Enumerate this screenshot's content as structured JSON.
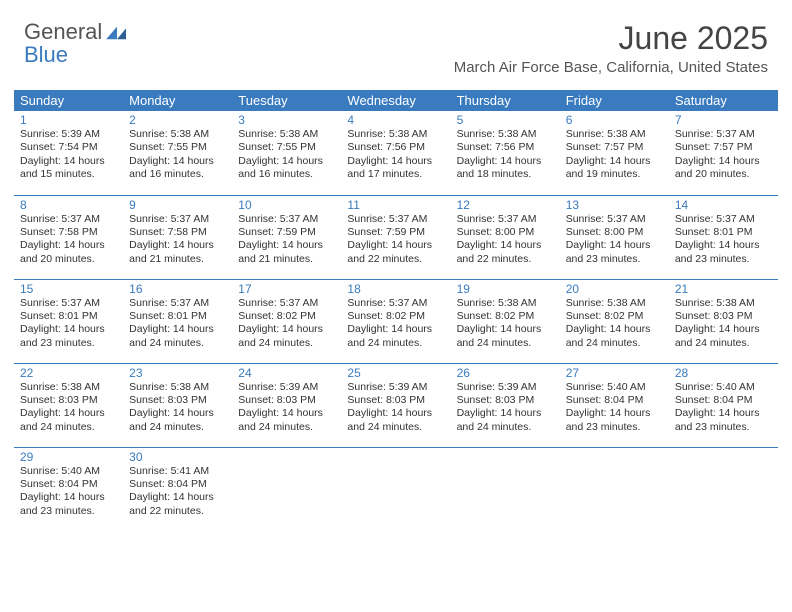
{
  "brand": {
    "word1": "General",
    "word2": "Blue"
  },
  "colors": {
    "accent": "#3a7bbf",
    "header_text": "#ffffff",
    "body_text": "#333333",
    "title_text": "#444444",
    "sub_text": "#555555",
    "background": "#ffffff"
  },
  "title": "June 2025",
  "location": "March Air Force Base, California, United States",
  "weekday_headers": [
    "Sunday",
    "Monday",
    "Tuesday",
    "Wednesday",
    "Thursday",
    "Friday",
    "Saturday"
  ],
  "weeks": [
    [
      {
        "n": "1",
        "sr": "Sunrise: 5:39 AM",
        "ss": "Sunset: 7:54 PM",
        "dl": "Daylight: 14 hours and 15 minutes."
      },
      {
        "n": "2",
        "sr": "Sunrise: 5:38 AM",
        "ss": "Sunset: 7:55 PM",
        "dl": "Daylight: 14 hours and 16 minutes."
      },
      {
        "n": "3",
        "sr": "Sunrise: 5:38 AM",
        "ss": "Sunset: 7:55 PM",
        "dl": "Daylight: 14 hours and 16 minutes."
      },
      {
        "n": "4",
        "sr": "Sunrise: 5:38 AM",
        "ss": "Sunset: 7:56 PM",
        "dl": "Daylight: 14 hours and 17 minutes."
      },
      {
        "n": "5",
        "sr": "Sunrise: 5:38 AM",
        "ss": "Sunset: 7:56 PM",
        "dl": "Daylight: 14 hours and 18 minutes."
      },
      {
        "n": "6",
        "sr": "Sunrise: 5:38 AM",
        "ss": "Sunset: 7:57 PM",
        "dl": "Daylight: 14 hours and 19 minutes."
      },
      {
        "n": "7",
        "sr": "Sunrise: 5:37 AM",
        "ss": "Sunset: 7:57 PM",
        "dl": "Daylight: 14 hours and 20 minutes."
      }
    ],
    [
      {
        "n": "8",
        "sr": "Sunrise: 5:37 AM",
        "ss": "Sunset: 7:58 PM",
        "dl": "Daylight: 14 hours and 20 minutes."
      },
      {
        "n": "9",
        "sr": "Sunrise: 5:37 AM",
        "ss": "Sunset: 7:58 PM",
        "dl": "Daylight: 14 hours and 21 minutes."
      },
      {
        "n": "10",
        "sr": "Sunrise: 5:37 AM",
        "ss": "Sunset: 7:59 PM",
        "dl": "Daylight: 14 hours and 21 minutes."
      },
      {
        "n": "11",
        "sr": "Sunrise: 5:37 AM",
        "ss": "Sunset: 7:59 PM",
        "dl": "Daylight: 14 hours and 22 minutes."
      },
      {
        "n": "12",
        "sr": "Sunrise: 5:37 AM",
        "ss": "Sunset: 8:00 PM",
        "dl": "Daylight: 14 hours and 22 minutes."
      },
      {
        "n": "13",
        "sr": "Sunrise: 5:37 AM",
        "ss": "Sunset: 8:00 PM",
        "dl": "Daylight: 14 hours and 23 minutes."
      },
      {
        "n": "14",
        "sr": "Sunrise: 5:37 AM",
        "ss": "Sunset: 8:01 PM",
        "dl": "Daylight: 14 hours and 23 minutes."
      }
    ],
    [
      {
        "n": "15",
        "sr": "Sunrise: 5:37 AM",
        "ss": "Sunset: 8:01 PM",
        "dl": "Daylight: 14 hours and 23 minutes."
      },
      {
        "n": "16",
        "sr": "Sunrise: 5:37 AM",
        "ss": "Sunset: 8:01 PM",
        "dl": "Daylight: 14 hours and 24 minutes."
      },
      {
        "n": "17",
        "sr": "Sunrise: 5:37 AM",
        "ss": "Sunset: 8:02 PM",
        "dl": "Daylight: 14 hours and 24 minutes."
      },
      {
        "n": "18",
        "sr": "Sunrise: 5:37 AM",
        "ss": "Sunset: 8:02 PM",
        "dl": "Daylight: 14 hours and 24 minutes."
      },
      {
        "n": "19",
        "sr": "Sunrise: 5:38 AM",
        "ss": "Sunset: 8:02 PM",
        "dl": "Daylight: 14 hours and 24 minutes."
      },
      {
        "n": "20",
        "sr": "Sunrise: 5:38 AM",
        "ss": "Sunset: 8:02 PM",
        "dl": "Daylight: 14 hours and 24 minutes."
      },
      {
        "n": "21",
        "sr": "Sunrise: 5:38 AM",
        "ss": "Sunset: 8:03 PM",
        "dl": "Daylight: 14 hours and 24 minutes."
      }
    ],
    [
      {
        "n": "22",
        "sr": "Sunrise: 5:38 AM",
        "ss": "Sunset: 8:03 PM",
        "dl": "Daylight: 14 hours and 24 minutes."
      },
      {
        "n": "23",
        "sr": "Sunrise: 5:38 AM",
        "ss": "Sunset: 8:03 PM",
        "dl": "Daylight: 14 hours and 24 minutes."
      },
      {
        "n": "24",
        "sr": "Sunrise: 5:39 AM",
        "ss": "Sunset: 8:03 PM",
        "dl": "Daylight: 14 hours and 24 minutes."
      },
      {
        "n": "25",
        "sr": "Sunrise: 5:39 AM",
        "ss": "Sunset: 8:03 PM",
        "dl": "Daylight: 14 hours and 24 minutes."
      },
      {
        "n": "26",
        "sr": "Sunrise: 5:39 AM",
        "ss": "Sunset: 8:03 PM",
        "dl": "Daylight: 14 hours and 24 minutes."
      },
      {
        "n": "27",
        "sr": "Sunrise: 5:40 AM",
        "ss": "Sunset: 8:04 PM",
        "dl": "Daylight: 14 hours and 23 minutes."
      },
      {
        "n": "28",
        "sr": "Sunrise: 5:40 AM",
        "ss": "Sunset: 8:04 PM",
        "dl": "Daylight: 14 hours and 23 minutes."
      }
    ],
    [
      {
        "n": "29",
        "sr": "Sunrise: 5:40 AM",
        "ss": "Sunset: 8:04 PM",
        "dl": "Daylight: 14 hours and 23 minutes."
      },
      {
        "n": "30",
        "sr": "Sunrise: 5:41 AM",
        "ss": "Sunset: 8:04 PM",
        "dl": "Daylight: 14 hours and 22 minutes."
      },
      null,
      null,
      null,
      null,
      null
    ]
  ]
}
